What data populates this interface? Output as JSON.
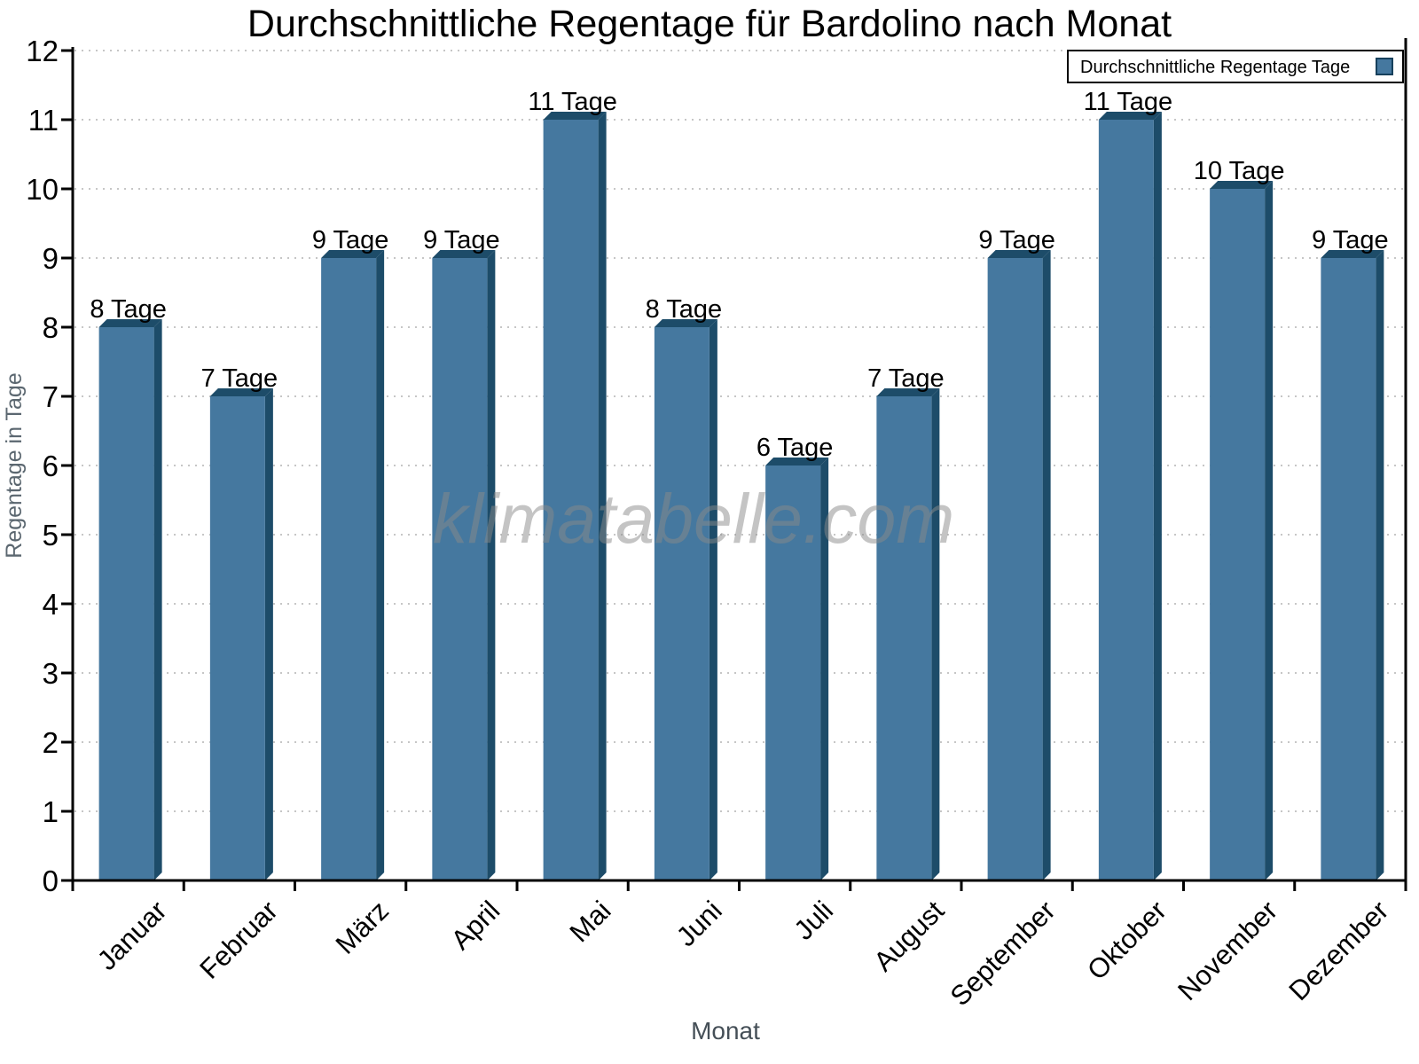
{
  "title": "Durchschnittliche Regentage für Bardolino nach Monat",
  "watermark": "klimatabelle.com",
  "legend": {
    "label": "Durchschnittliche Regentage Tage",
    "position": "top-right"
  },
  "colors": {
    "bar_front": "#45789f",
    "bar_dark": "#1d4c69",
    "legend_swatch_border": "#16405c",
    "grid": "#c6c6c6",
    "axis": "#000000",
    "y_axis_title": "#5b6770",
    "x_axis_title": "#454f57",
    "tick_label": "#000000",
    "watermark": "#8a8a8a"
  },
  "chart_data": {
    "type": "bar",
    "title": "Durchschnittliche Regentage für Bardolino nach Monat",
    "categories": [
      "Januar",
      "Februar",
      "März",
      "April",
      "Mai",
      "Juni",
      "Juli",
      "August",
      "September",
      "Oktober",
      "November",
      "Dezember"
    ],
    "values": [
      8,
      7,
      9,
      9,
      11,
      8,
      6,
      7,
      9,
      11,
      10,
      9
    ],
    "value_labels": [
      "8 Tage",
      "7 Tage",
      "9 Tage",
      "9 Tage",
      "11 Tage",
      "8 Tage",
      "6 Tage",
      "7 Tage",
      "9 Tage",
      "11 Tage",
      "10 Tage",
      "9 Tage"
    ],
    "series_name": "Durchschnittliche Regentage Tage",
    "xlabel": "Monat",
    "ylabel": "Regentage in Tage",
    "ylim": [
      0,
      12
    ],
    "yticks": [
      0,
      1,
      2,
      3,
      4,
      5,
      6,
      7,
      8,
      9,
      10,
      11,
      12
    ],
    "grid": "horizontal-dotted",
    "x_tick_label_rotation_deg": -45,
    "legend_position": "top-right",
    "bar_style": "3d-extruded"
  }
}
